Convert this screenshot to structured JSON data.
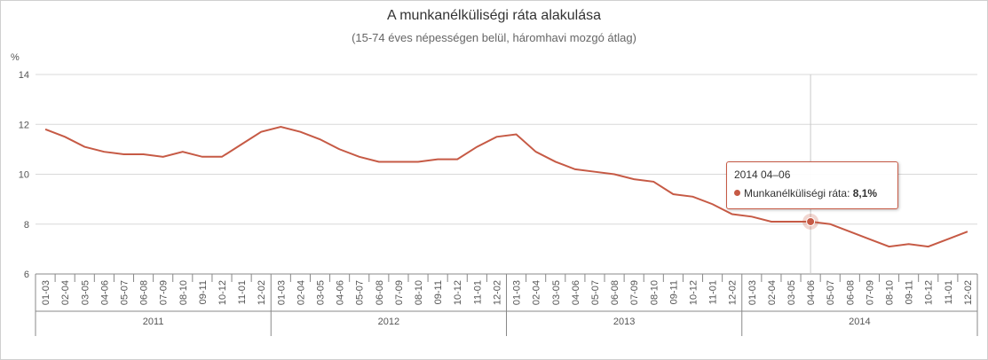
{
  "colors": {
    "line": "#c65a45",
    "grid": "#d8d8d8",
    "axis": "#888888"
  },
  "chart_data": {
    "type": "line",
    "title": "A munkanélküliségi ráta alakulása",
    "subtitle": "(15-74 éves népességen belül, háromhavi mozgó átlag)",
    "ylabel": "%",
    "ylim": [
      6,
      14
    ],
    "yticks": [
      "6",
      "8",
      "10",
      "12",
      "14"
    ],
    "grid": true,
    "categories": [
      "01-03",
      "02-04",
      "03-05",
      "04-06",
      "05-07",
      "06-08",
      "07-09",
      "08-10",
      "09-11",
      "10-12",
      "11-01",
      "12-02",
      "01-03",
      "02-04",
      "03-05",
      "04-06",
      "05-07",
      "06-08",
      "07-09",
      "08-10",
      "09-11",
      "10-12",
      "11-01",
      "12-02",
      "01-03",
      "02-04",
      "03-05",
      "04-06",
      "05-07",
      "06-08",
      "07-09",
      "08-10",
      "09-11",
      "10-12",
      "11-01",
      "12-02",
      "01-03",
      "02-04",
      "03-05",
      "04-06",
      "05-07",
      "06-08",
      "07-09",
      "08-10",
      "09-11",
      "10-12",
      "11-01",
      "12-02"
    ],
    "groups": [
      "2011",
      "2012",
      "2013",
      "2014"
    ],
    "series": [
      {
        "name": "Munkanélküliségi ráta",
        "values": [
          11.8,
          11.5,
          11.1,
          10.9,
          10.8,
          10.8,
          10.7,
          10.9,
          10.7,
          10.7,
          11.2,
          11.7,
          11.9,
          11.7,
          11.4,
          11.0,
          10.7,
          10.5,
          10.5,
          10.5,
          10.6,
          10.6,
          11.1,
          11.5,
          11.6,
          10.9,
          10.5,
          10.2,
          10.1,
          10.0,
          9.8,
          9.7,
          9.2,
          9.1,
          8.8,
          8.4,
          8.3,
          8.1,
          8.1,
          8.1,
          8.0,
          7.7,
          7.4,
          7.1,
          7.2,
          7.1,
          7.4,
          7.7
        ]
      }
    ],
    "highlighted_index": 39
  },
  "tooltip": {
    "header": "2014 04–06",
    "series_label": "Munkanélküliségi ráta:",
    "value_text": "8,1%"
  }
}
